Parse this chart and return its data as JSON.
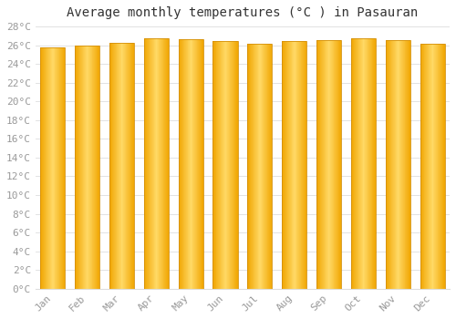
{
  "title": "Average monthly temperatures (°C ) in Pasauran",
  "months": [
    "Jan",
    "Feb",
    "Mar",
    "Apr",
    "May",
    "Jun",
    "Jul",
    "Aug",
    "Sep",
    "Oct",
    "Nov",
    "Dec"
  ],
  "values": [
    25.8,
    26.0,
    26.3,
    26.7,
    26.6,
    26.4,
    26.2,
    26.4,
    26.5,
    26.7,
    26.5,
    26.2
  ],
  "ylim": [
    0,
    28
  ],
  "yticks": [
    0,
    2,
    4,
    6,
    8,
    10,
    12,
    14,
    16,
    18,
    20,
    22,
    24,
    26,
    28
  ],
  "bar_color_center": "#FFD966",
  "bar_color_edge": "#F0A500",
  "bar_border_color": "#D4900A",
  "background_color": "#FFFFFF",
  "grid_color": "#DDDDDD",
  "title_fontsize": 10,
  "tick_fontsize": 8,
  "title_color": "#333333",
  "tick_color": "#999999",
  "bar_width": 0.72
}
